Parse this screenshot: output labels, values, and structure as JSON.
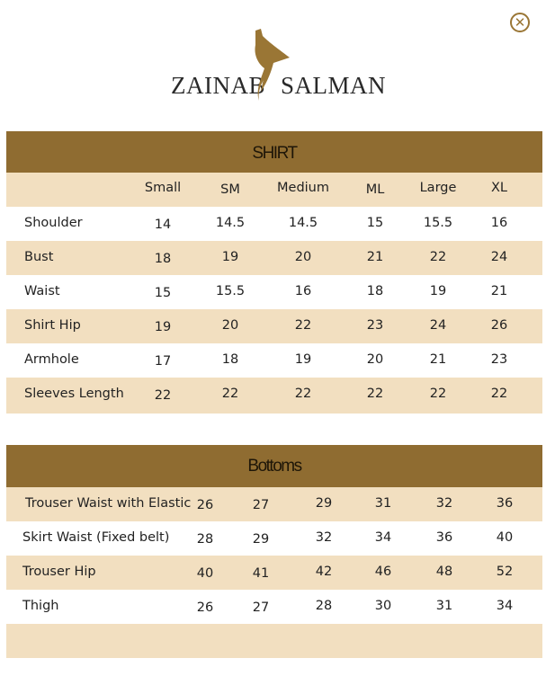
{
  "brand": {
    "left": "ZAINAB",
    "right": "SALMAN",
    "logo_color": "#9a7635"
  },
  "close_icon": "close-circle-icon",
  "colors": {
    "header": "#8f6c31",
    "stripe": "#f2dfc0"
  },
  "shirt": {
    "title": "SHIRT",
    "columns": [
      "Small",
      "SM",
      "Medium",
      "ML",
      "Large",
      "XL"
    ],
    "rows": [
      {
        "label": "Shoulder",
        "values": [
          "14",
          "14.5",
          "14.5",
          "15",
          "15.5",
          "16"
        ]
      },
      {
        "label": "Bust",
        "values": [
          "18",
          "19",
          "20",
          "21",
          "22",
          "24"
        ]
      },
      {
        "label": "Waist",
        "values": [
          "15",
          "15.5",
          "16",
          "18",
          "19",
          "21"
        ]
      },
      {
        "label": "Shirt Hip",
        "values": [
          "19",
          "20",
          "22",
          "23",
          "24",
          "26"
        ]
      },
      {
        "label": "Armhole",
        "values": [
          "17",
          "18",
          "19",
          "20",
          "21",
          "23"
        ]
      },
      {
        "label": "Sleeves Length",
        "values": [
          "22",
          "22",
          "22",
          "22",
          "22",
          "22"
        ]
      }
    ]
  },
  "bottoms": {
    "title": "Bottoms",
    "rows": [
      {
        "label": "Trouser Waist with Elastic",
        "values": [
          "26",
          "27",
          "29",
          "31",
          "32",
          "36"
        ]
      },
      {
        "label": "Skirt Waist (Fixed belt)",
        "values": [
          "28",
          "29",
          "32",
          "34",
          "36",
          "40"
        ]
      },
      {
        "label": "Trouser Hip",
        "values": [
          "40",
          "41",
          "42",
          "46",
          "48",
          "52"
        ]
      },
      {
        "label": "Thigh",
        "values": [
          "26",
          "27",
          "28",
          "30",
          "31",
          "34"
        ]
      }
    ]
  }
}
